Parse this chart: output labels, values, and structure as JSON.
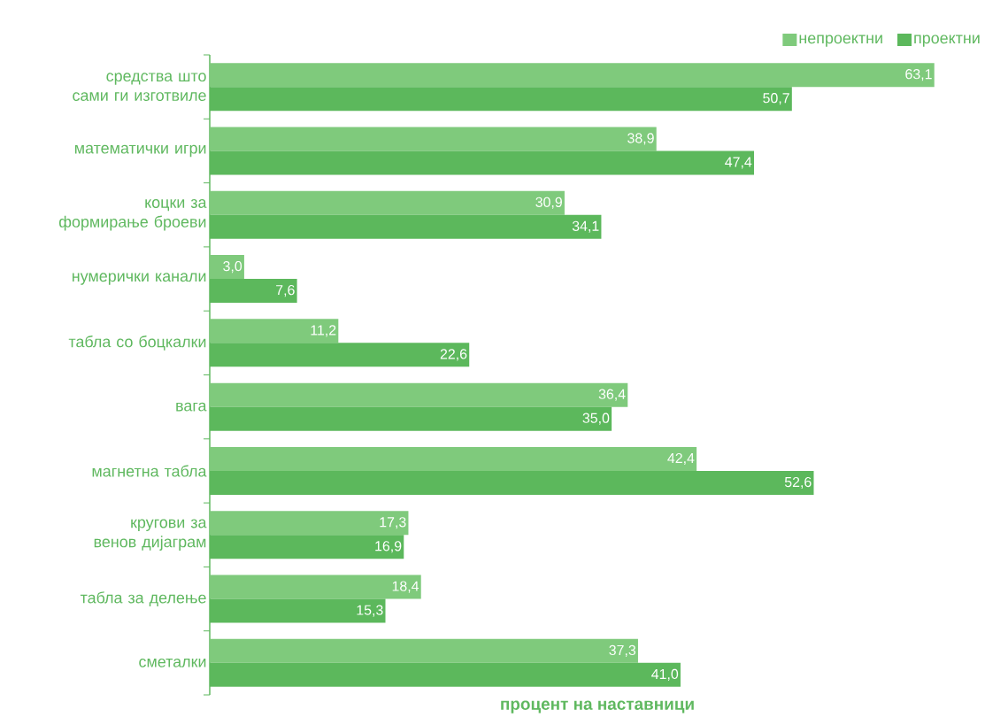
{
  "chart_data": {
    "type": "bar",
    "orientation": "horizontal",
    "xlabel": "процент на наставници",
    "categories": [
      "средства што сами ги изготвиле",
      "математички игри",
      "коцки за формирање броеви",
      "нумерички канали",
      "табла со боцкалки",
      "вага",
      "магнетна табла",
      "кругови за венов дијаграм",
      "табла за делење",
      "сметалки"
    ],
    "series": [
      {
        "name": "непроектни",
        "color": "#7fca7c",
        "values": [
          63.1,
          38.9,
          30.9,
          3.0,
          11.2,
          36.4,
          42.4,
          17.3,
          18.4,
          37.3
        ],
        "value_labels": [
          "63,1",
          "38,9",
          "30,9",
          "3,0",
          "11,2",
          "36,4",
          "42,4",
          "17,3",
          "18,4",
          "37,3"
        ]
      },
      {
        "name": "проектни",
        "color": "#5cb85c",
        "values": [
          50.7,
          47.4,
          34.1,
          7.6,
          22.6,
          35.0,
          52.6,
          16.9,
          15.3,
          41.0
        ],
        "value_labels": [
          "50,7",
          "47,4",
          "34,1",
          "7,6",
          "22,6",
          "35,0",
          "52,6",
          "16,9",
          "15,3",
          "41,0"
        ]
      }
    ],
    "legend": "top right"
  }
}
